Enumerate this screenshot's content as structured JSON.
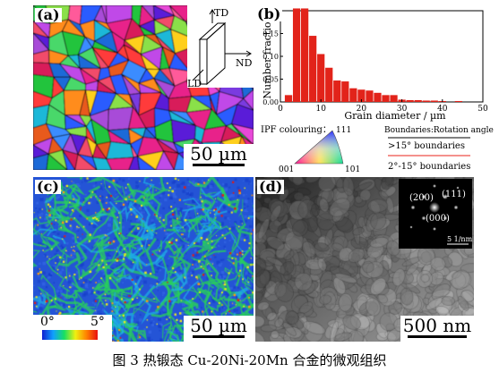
{
  "caption": "图 3  热锻态 Cu-20Ni-20Mn 合金的微观组织",
  "panel_a": {
    "label": "(a)",
    "scale_bar": "50 µm",
    "axes": {
      "td": "TD",
      "nd": "ND",
      "ld": "LD"
    }
  },
  "panel_b": {
    "label": "(b)",
    "ipf_title": "IPF colouring：",
    "ipf_001": "001",
    "ipf_101": "101",
    "ipf_111": "111",
    "boundaries_title": "Boundaries:Rotation angle",
    "hagb": ">15° boundaries",
    "lagb": "2°-15° boundaries",
    "hagb_color": "#000000",
    "lagb_color": "#e8231a"
  },
  "chart_data": {
    "type": "bar",
    "xlabel": "Grain diameter / µm",
    "ylabel": "Number fraction",
    "xlim": [
      0,
      50
    ],
    "ylim": [
      0,
      0.2
    ],
    "xticks": [
      0,
      10,
      20,
      30,
      40,
      50
    ],
    "yticks": [
      0,
      0.05,
      0.1,
      0.15,
      0.2
    ],
    "ytick_labels": [
      "0.00",
      "0.05",
      "0.10",
      "0.15",
      "0.20"
    ],
    "bar_width": 2,
    "bar_color": "#e2231a",
    "x": [
      2,
      4,
      6,
      8,
      10,
      12,
      14,
      16,
      18,
      20,
      22,
      24,
      26,
      28,
      30,
      32,
      34,
      36,
      38,
      40,
      42,
      44
    ],
    "values": [
      0.015,
      0.205,
      0.205,
      0.145,
      0.105,
      0.075,
      0.047,
      0.045,
      0.03,
      0.027,
      0.025,
      0.02,
      0.015,
      0.015,
      0.005,
      0.004,
      0.004,
      0.003,
      0.003,
      0.002,
      0,
      0.002
    ]
  },
  "panel_c": {
    "label": "(c)",
    "scale_bar": "50 µm",
    "kam_min": "0°",
    "kam_max": "5°"
  },
  "panel_d": {
    "label": "(d)",
    "scale_bar": "500 nm",
    "saed_200": "(200)",
    "saed_111": "(111)",
    "saed_000": "(000)",
    "saed_scale": "5 1/nm"
  }
}
